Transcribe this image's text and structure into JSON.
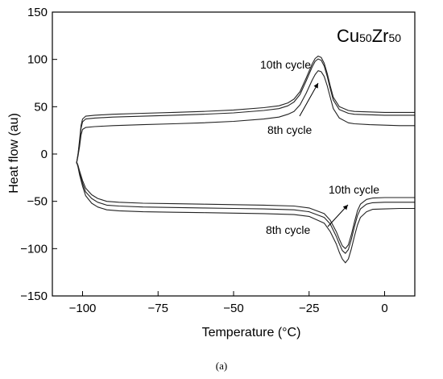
{
  "chart_data": {
    "type": "line",
    "xlabel": "Temperature (°C)",
    "ylabel": "Heat flow (au)",
    "xlim": [
      -110,
      10
    ],
    "ylim": [
      -150,
      150
    ],
    "xticks": [
      -100,
      -75,
      -50,
      -25,
      0
    ],
    "yticks": [
      -150,
      -100,
      -50,
      0,
      50,
      100,
      150
    ],
    "xtick_labels": [
      "−100",
      "−75",
      "−50",
      "−25",
      "0"
    ],
    "ytick_labels": [
      "−150",
      "−100",
      "−50",
      "0",
      "50",
      "100",
      "150"
    ],
    "composition": {
      "el1": "Cu",
      "n1": "50",
      "el2": "Zr",
      "n2": "50"
    },
    "annotations": {
      "heating_10th": "10th cycle",
      "heating_8th": "8th cycle",
      "cooling_10th": "10th cycle",
      "cooling_8th": "8th cycle"
    },
    "series": [
      {
        "group": "heating",
        "x": [
          -102,
          -101.5,
          -101,
          -100.5,
          -100,
          -99,
          -96,
          -90,
          -80,
          -70,
          -60,
          -50,
          -40,
          -35,
          -32,
          -30,
          -28,
          -26,
          -24,
          -23,
          -22,
          -21,
          -20,
          -19,
          -18,
          -17,
          -15,
          -12,
          -10,
          -5,
          0,
          5,
          10
        ],
        "y": [
          -10,
          0,
          15,
          30,
          37,
          40,
          41,
          42,
          43,
          44,
          45,
          46.5,
          49,
          51,
          54,
          58,
          66,
          80,
          95,
          101,
          103.5,
          102,
          96,
          85,
          72,
          60,
          50,
          46,
          45,
          44.5,
          44,
          44,
          44
        ]
      },
      {
        "group": "heating",
        "x": [
          -102,
          -101.5,
          -101,
          -100.5,
          -100,
          -99,
          -96,
          -90,
          -80,
          -70,
          -60,
          -50,
          -40,
          -35,
          -32,
          -30,
          -28,
          -26,
          -24,
          -23,
          -22,
          -21,
          -20,
          -19,
          -18,
          -17,
          -15,
          -12,
          -10,
          -5,
          0,
          5,
          10
        ],
        "y": [
          -10,
          0,
          12,
          27,
          34,
          37,
          38,
          39,
          40,
          41,
          42,
          43.5,
          46,
          48,
          51,
          55,
          63,
          77,
          92,
          98,
          100.5,
          99,
          93,
          82,
          69,
          57,
          47,
          43,
          42,
          41.5,
          41,
          41,
          41
        ]
      },
      {
        "group": "heating",
        "x": [
          -102,
          -101.5,
          -101,
          -100.5,
          -100,
          -99,
          -96,
          -90,
          -80,
          -70,
          -60,
          -50,
          -40,
          -35,
          -32,
          -30,
          -28,
          -26,
          -24,
          -23,
          -22,
          -21,
          -20,
          -19,
          -18,
          -17,
          -15,
          -12,
          -10,
          -5,
          0,
          5,
          10
        ],
        "y": [
          -10,
          -2,
          8,
          20,
          26,
          28,
          29,
          30,
          31,
          32,
          33,
          34.5,
          37,
          39,
          42,
          45,
          52,
          64,
          78,
          84,
          88,
          87,
          82,
          72,
          60,
          48,
          38,
          33,
          32,
          31,
          30.5,
          30,
          30
        ]
      },
      {
        "group": "cooling",
        "x": [
          -102,
          -101.5,
          -101,
          -100,
          -99,
          -97,
          -95,
          -92,
          -88,
          -80,
          -70,
          -60,
          -50,
          -40,
          -30,
          -25,
          -20,
          -18,
          -16,
          -15,
          -14,
          -13,
          -12,
          -11,
          -10,
          -9,
          -8,
          -6,
          -4,
          0,
          5,
          10
        ],
        "y": [
          -8,
          -12,
          -18,
          -28,
          -36,
          -43,
          -47,
          -50,
          -51,
          -52,
          -52.5,
          -53,
          -53.5,
          -54,
          -55,
          -57,
          -63,
          -70,
          -82,
          -90,
          -97,
          -100,
          -96,
          -85,
          -72,
          -60,
          -53,
          -48,
          -46.5,
          -46,
          -46,
          -46
        ]
      },
      {
        "group": "cooling",
        "x": [
          -102,
          -101.5,
          -101,
          -100,
          -99,
          -97,
          -95,
          -92,
          -88,
          -80,
          -70,
          -60,
          -50,
          -40,
          -30,
          -25,
          -20,
          -18,
          -16,
          -15,
          -14,
          -13,
          -12,
          -11,
          -10,
          -9,
          -8,
          -6,
          -4,
          0,
          5,
          10
        ],
        "y": [
          -8,
          -13,
          -20,
          -31,
          -40,
          -47,
          -51,
          -54,
          -55,
          -56,
          -56.5,
          -57,
          -57.5,
          -58,
          -59,
          -61,
          -67,
          -74,
          -87,
          -95,
          -102,
          -105,
          -101,
          -90,
          -77,
          -65,
          -58,
          -53,
          -51.5,
          -51,
          -51,
          -51
        ]
      },
      {
        "group": "cooling",
        "x": [
          -102,
          -101.5,
          -101,
          -100,
          -99,
          -97,
          -95,
          -92,
          -88,
          -80,
          -70,
          -60,
          -50,
          -40,
          -30,
          -25,
          -20,
          -18,
          -16,
          -15,
          -14,
          -13,
          -12,
          -11,
          -10,
          -9,
          -8,
          -6,
          -4,
          0,
          5,
          10
        ],
        "y": [
          -8,
          -14,
          -22,
          -34,
          -44,
          -52,
          -56,
          -59,
          -60,
          -61,
          -61.5,
          -62,
          -62.5,
          -63,
          -64,
          -66,
          -73,
          -82,
          -95,
          -104,
          -111,
          -115,
          -111,
          -100,
          -87,
          -75,
          -67,
          -61,
          -58.5,
          -58,
          -57.5,
          -57.5
        ]
      }
    ]
  },
  "caption": "(a)"
}
